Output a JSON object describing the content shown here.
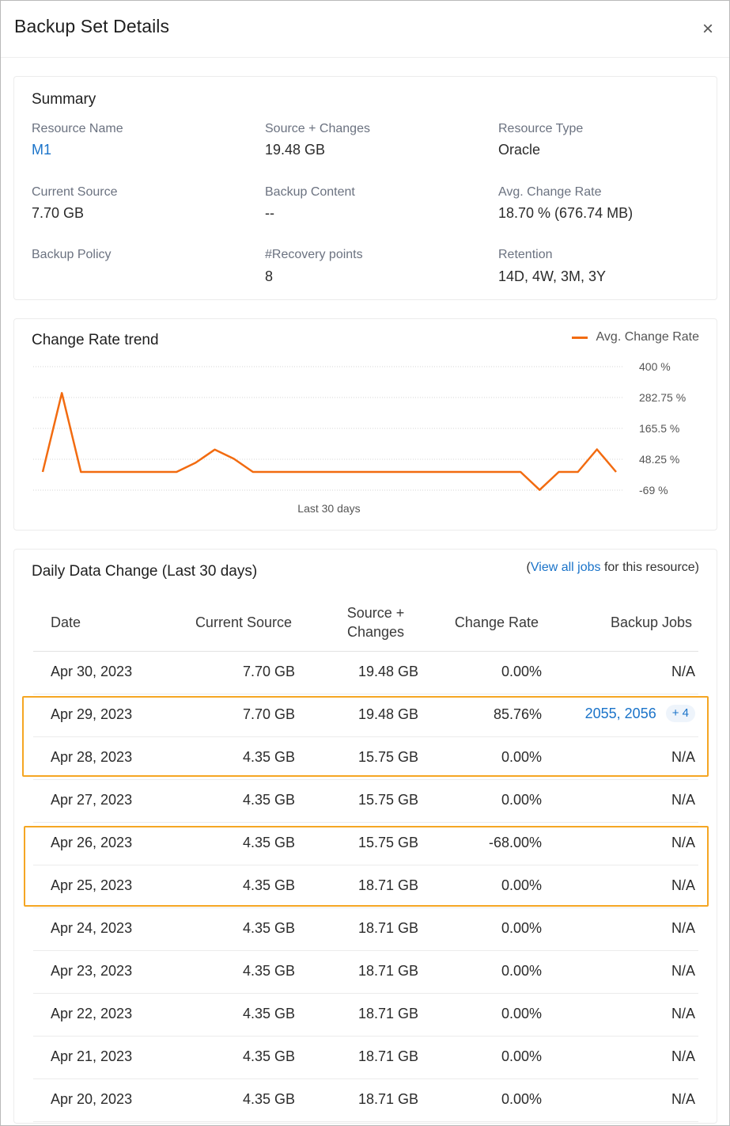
{
  "dialog": {
    "title": "Backup Set Details",
    "close_label": "×"
  },
  "summary": {
    "title": "Summary",
    "fields": [
      {
        "label": "Resource Name",
        "value": "M1",
        "is_link": true
      },
      {
        "label": "Source + Changes",
        "value": "19.48 GB"
      },
      {
        "label": "Resource Type",
        "value": "Oracle"
      },
      {
        "label": "Current Source",
        "value": "7.70 GB"
      },
      {
        "label": "Backup Content",
        "value": "--"
      },
      {
        "label": "Avg. Change Rate",
        "value": "18.70 % (676.74 MB)"
      },
      {
        "label": "Backup Policy",
        "value": ""
      },
      {
        "label": "#Recovery points",
        "value": "8"
      },
      {
        "label": "Retention",
        "value": "14D, 4W, 3M, 3Y"
      }
    ]
  },
  "trend": {
    "title": "Change Rate trend",
    "legend_label": "Avg. Change Rate",
    "xlabel": "Last 30 days",
    "colors": {
      "line": "#f26b10",
      "grid": "#d6d6d6"
    }
  },
  "chart_data": {
    "type": "line",
    "title": "Change Rate trend",
    "xlabel": "Last 30 days",
    "ylabel": "",
    "y_ticks": [
      "400 %",
      "282.75 %",
      "165.5 %",
      "48.25 %",
      "-69 %"
    ],
    "ylim": [
      -69,
      400
    ],
    "grid": true,
    "legend_position": "top-right",
    "series": [
      {
        "name": "Avg. Change Rate",
        "values": [
          0,
          300,
          0,
          0,
          0,
          0,
          0,
          0,
          35,
          85,
          50,
          0,
          0,
          0,
          0,
          0,
          0,
          0,
          0,
          0,
          0,
          0,
          0,
          0,
          0,
          0,
          -68,
          0,
          0,
          85.76,
          0
        ]
      }
    ]
  },
  "daily": {
    "title": "Daily Data Change (Last 30 days)",
    "viewall_prefix": "(",
    "viewall_link": "View all jobs",
    "viewall_suffix": " for this resource)",
    "headers": {
      "date": "Date",
      "current_source": "Current Source",
      "source_changes_line1": "Source +",
      "source_changes_line2": "Changes",
      "change_rate": "Change Rate",
      "backup_jobs": "Backup Jobs"
    },
    "rows": [
      {
        "date": "Apr 30, 2023",
        "current_source": "7.70 GB",
        "source_changes": "19.48 GB",
        "change_rate": "0.00%",
        "jobs": "N/A"
      },
      {
        "date": "Apr 29, 2023",
        "current_source": "7.70 GB",
        "source_changes": "19.48 GB",
        "change_rate": "85.76%",
        "jobs_links": "2055, 2056",
        "jobs_more": "+ 4"
      },
      {
        "date": "Apr 28, 2023",
        "current_source": "4.35 GB",
        "source_changes": "15.75 GB",
        "change_rate": "0.00%",
        "jobs": "N/A"
      },
      {
        "date": "Apr 27, 2023",
        "current_source": "4.35 GB",
        "source_changes": "15.75 GB",
        "change_rate": "0.00%",
        "jobs": "N/A"
      },
      {
        "date": "Apr 26, 2023",
        "current_source": "4.35 GB",
        "source_changes": "15.75 GB",
        "change_rate": "-68.00%",
        "jobs": "N/A"
      },
      {
        "date": "Apr 25, 2023",
        "current_source": "4.35 GB",
        "source_changes": "18.71 GB",
        "change_rate": "0.00%",
        "jobs": "N/A"
      },
      {
        "date": "Apr 24, 2023",
        "current_source": "4.35 GB",
        "source_changes": "18.71 GB",
        "change_rate": "0.00%",
        "jobs": "N/A"
      },
      {
        "date": "Apr 23, 2023",
        "current_source": "4.35 GB",
        "source_changes": "18.71 GB",
        "change_rate": "0.00%",
        "jobs": "N/A"
      },
      {
        "date": "Apr 22, 2023",
        "current_source": "4.35 GB",
        "source_changes": "18.71 GB",
        "change_rate": "0.00%",
        "jobs": "N/A"
      },
      {
        "date": "Apr 21, 2023",
        "current_source": "4.35 GB",
        "source_changes": "18.71 GB",
        "change_rate": "0.00%",
        "jobs": "N/A"
      },
      {
        "date": "Apr 20, 2023",
        "current_source": "4.35 GB",
        "source_changes": "18.71 GB",
        "change_rate": "0.00%",
        "jobs": "N/A"
      }
    ],
    "highlight_color": "#f5a623"
  }
}
